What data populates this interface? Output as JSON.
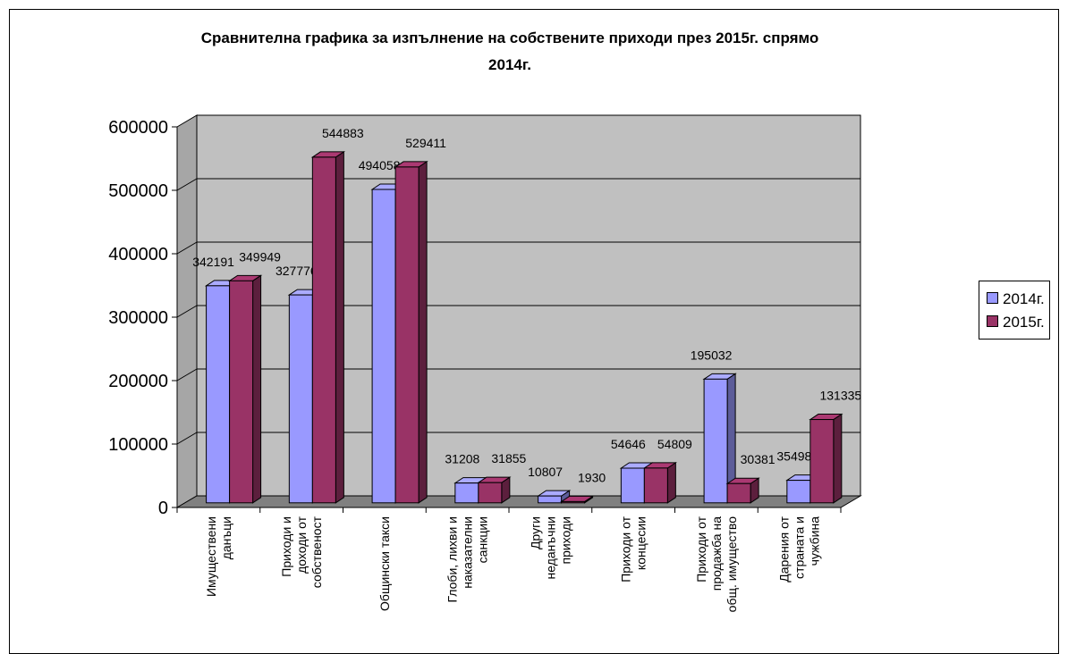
{
  "chart_data": {
    "type": "bar",
    "title_line1": "Сравнителна графика за изпълнение на собствените приходи през 2015г. спрямо",
    "title_line2": "2014г.",
    "categories": [
      [
        "Имуществени",
        "данъци"
      ],
      [
        "Приходи и",
        "доходи от",
        "собственост"
      ],
      [
        "Общински такси"
      ],
      [
        "Глоби, лихви и",
        "наказателни",
        "санкции"
      ],
      [
        "Други",
        "неданъчни",
        "приходи"
      ],
      [
        "Приходи от",
        "концесии"
      ],
      [
        "Приходи от",
        "продажба на",
        "общ. имущество"
      ],
      [
        "Дарения от",
        "страната и",
        "чужбина"
      ]
    ],
    "series": [
      {
        "name": "2014г.",
        "color": "#9999FF",
        "values": [
          342191,
          327776,
          494058,
          31208,
          10807,
          54646,
          195032,
          35498
        ]
      },
      {
        "name": "2015г.",
        "color": "#993366",
        "values": [
          349949,
          544883,
          529411,
          31855,
          1930,
          54809,
          30381,
          131335
        ]
      }
    ],
    "y_ticks": [
      "0",
      "100000",
      "200000",
      "300000",
      "400000",
      "500000",
      "600000"
    ],
    "ylim": [
      0,
      600000
    ],
    "grid": true,
    "legend_position": "right"
  }
}
